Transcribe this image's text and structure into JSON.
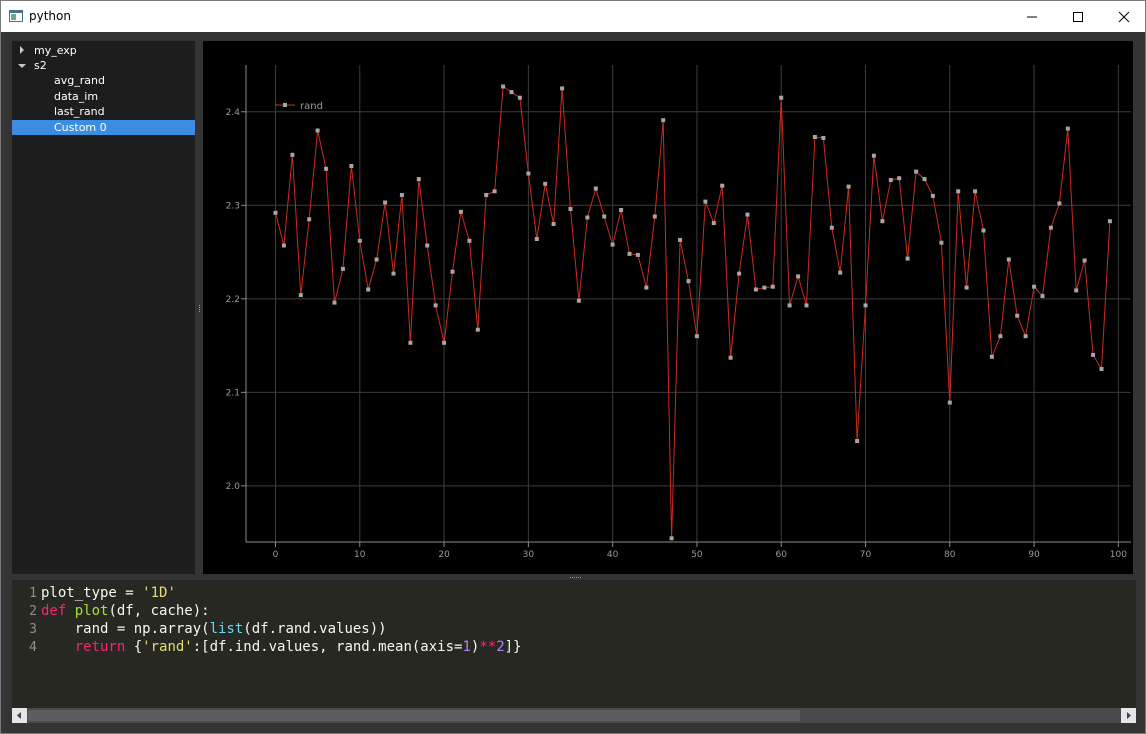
{
  "window": {
    "title": "python"
  },
  "tree": {
    "items": [
      {
        "label": "my_exp",
        "expanded": false,
        "has_children": true,
        "level": 0,
        "selected": false
      },
      {
        "label": "s2",
        "expanded": true,
        "has_children": true,
        "level": 0,
        "selected": false
      },
      {
        "label": "avg_rand",
        "level": 1,
        "selected": false
      },
      {
        "label": "data_im",
        "level": 1,
        "selected": false
      },
      {
        "label": "last_rand",
        "level": 1,
        "selected": false
      },
      {
        "label": "Custom 0",
        "level": 1,
        "selected": true
      }
    ]
  },
  "editor": {
    "line_numbers": [
      "1",
      "2",
      "3",
      "4"
    ],
    "lines": [
      [
        {
          "t": "plot_type = ",
          "c": ""
        },
        {
          "t": "'1D'",
          "c": "t-str"
        }
      ],
      [
        {
          "t": "def",
          "c": "t-kw"
        },
        {
          "t": " ",
          "c": ""
        },
        {
          "t": "plot",
          "c": "t-fn"
        },
        {
          "t": "(df, cache):",
          "c": ""
        }
      ],
      [
        {
          "t": "    rand = np.array(",
          "c": ""
        },
        {
          "t": "list",
          "c": "t-bi"
        },
        {
          "t": "(df.rand.values))",
          "c": ""
        }
      ],
      [
        {
          "t": "    ",
          "c": ""
        },
        {
          "t": "return",
          "c": "t-kw"
        },
        {
          "t": " {",
          "c": ""
        },
        {
          "t": "'rand'",
          "c": "t-str"
        },
        {
          "t": ":[df.ind.values, rand.mean(axis=",
          "c": ""
        },
        {
          "t": "1",
          "c": "t-num"
        },
        {
          "t": ")",
          "c": ""
        },
        {
          "t": "**",
          "c": "t-op"
        },
        {
          "t": "2",
          "c": "t-num"
        },
        {
          "t": "]}",
          "c": ""
        }
      ]
    ]
  },
  "colors": {
    "line": "#cc2b1e",
    "marker": "#a6a6a6",
    "grid": "#3c3c3c",
    "axis": "#8c8c8c",
    "tick_text": "#9a9a9a"
  },
  "chart_data": {
    "type": "line",
    "xlim": [
      -3.5,
      101.5
    ],
    "ylim": [
      1.94,
      2.45
    ],
    "xticks": [
      0,
      10,
      20,
      30,
      40,
      50,
      60,
      70,
      80,
      90,
      100
    ],
    "yticks": [
      2.0,
      2.1,
      2.2,
      2.3,
      2.4
    ],
    "xtick_labels": [
      "0",
      "10",
      "20",
      "30",
      "40",
      "50",
      "60",
      "70",
      "80",
      "90",
      "100"
    ],
    "ytick_labels": [
      "2.0",
      "2.1",
      "2.2",
      "2.3",
      "2.4"
    ],
    "grid": true,
    "legend_position": "top-left",
    "series": [
      {
        "name": "rand",
        "x": [
          0,
          1,
          2,
          3,
          4,
          5,
          6,
          7,
          8,
          9,
          10,
          11,
          12,
          13,
          14,
          15,
          16,
          17,
          18,
          19,
          20,
          21,
          22,
          23,
          24,
          25,
          26,
          27,
          28,
          29,
          30,
          31,
          32,
          33,
          34,
          35,
          36,
          37,
          38,
          39,
          40,
          41,
          42,
          43,
          44,
          45,
          46,
          47,
          48,
          49,
          50,
          51,
          52,
          53,
          54,
          55,
          56,
          57,
          58,
          59,
          60,
          61,
          62,
          63,
          64,
          65,
          66,
          67,
          68,
          69,
          70,
          71,
          72,
          73,
          74,
          75,
          76,
          77,
          78,
          79,
          80,
          81,
          82,
          83,
          84,
          85,
          86,
          87,
          88,
          89,
          90,
          91,
          92,
          93,
          94,
          95,
          96,
          97,
          98,
          99
        ],
        "y": [
          2.292,
          2.257,
          2.354,
          2.204,
          2.285,
          2.38,
          2.339,
          2.196,
          2.232,
          2.342,
          2.262,
          2.21,
          2.242,
          2.303,
          2.227,
          2.311,
          2.153,
          2.328,
          2.257,
          2.193,
          2.153,
          2.229,
          2.293,
          2.262,
          2.167,
          2.311,
          2.315,
          2.427,
          2.421,
          2.415,
          2.334,
          2.264,
          2.323,
          2.28,
          2.425,
          2.296,
          2.198,
          2.287,
          2.318,
          2.288,
          2.258,
          2.295,
          2.248,
          2.247,
          2.212,
          2.288,
          2.391,
          1.944,
          2.263,
          2.219,
          2.16,
          2.304,
          2.281,
          2.321,
          2.137,
          2.227,
          2.29,
          2.21,
          2.212,
          2.213,
          2.415,
          2.193,
          2.224,
          2.193,
          2.373,
          2.372,
          2.276,
          2.228,
          2.32,
          2.048,
          2.193,
          2.353,
          2.283,
          2.327,
          2.329,
          2.243,
          2.336,
          2.328,
          2.31,
          2.26,
          2.089,
          2.315,
          2.212,
          2.315,
          2.273,
          2.138,
          2.16,
          2.242,
          2.182,
          2.16,
          2.213,
          2.203,
          2.276,
          2.302,
          2.382,
          2.209,
          2.241,
          2.14,
          2.125,
          2.283
        ]
      }
    ]
  }
}
